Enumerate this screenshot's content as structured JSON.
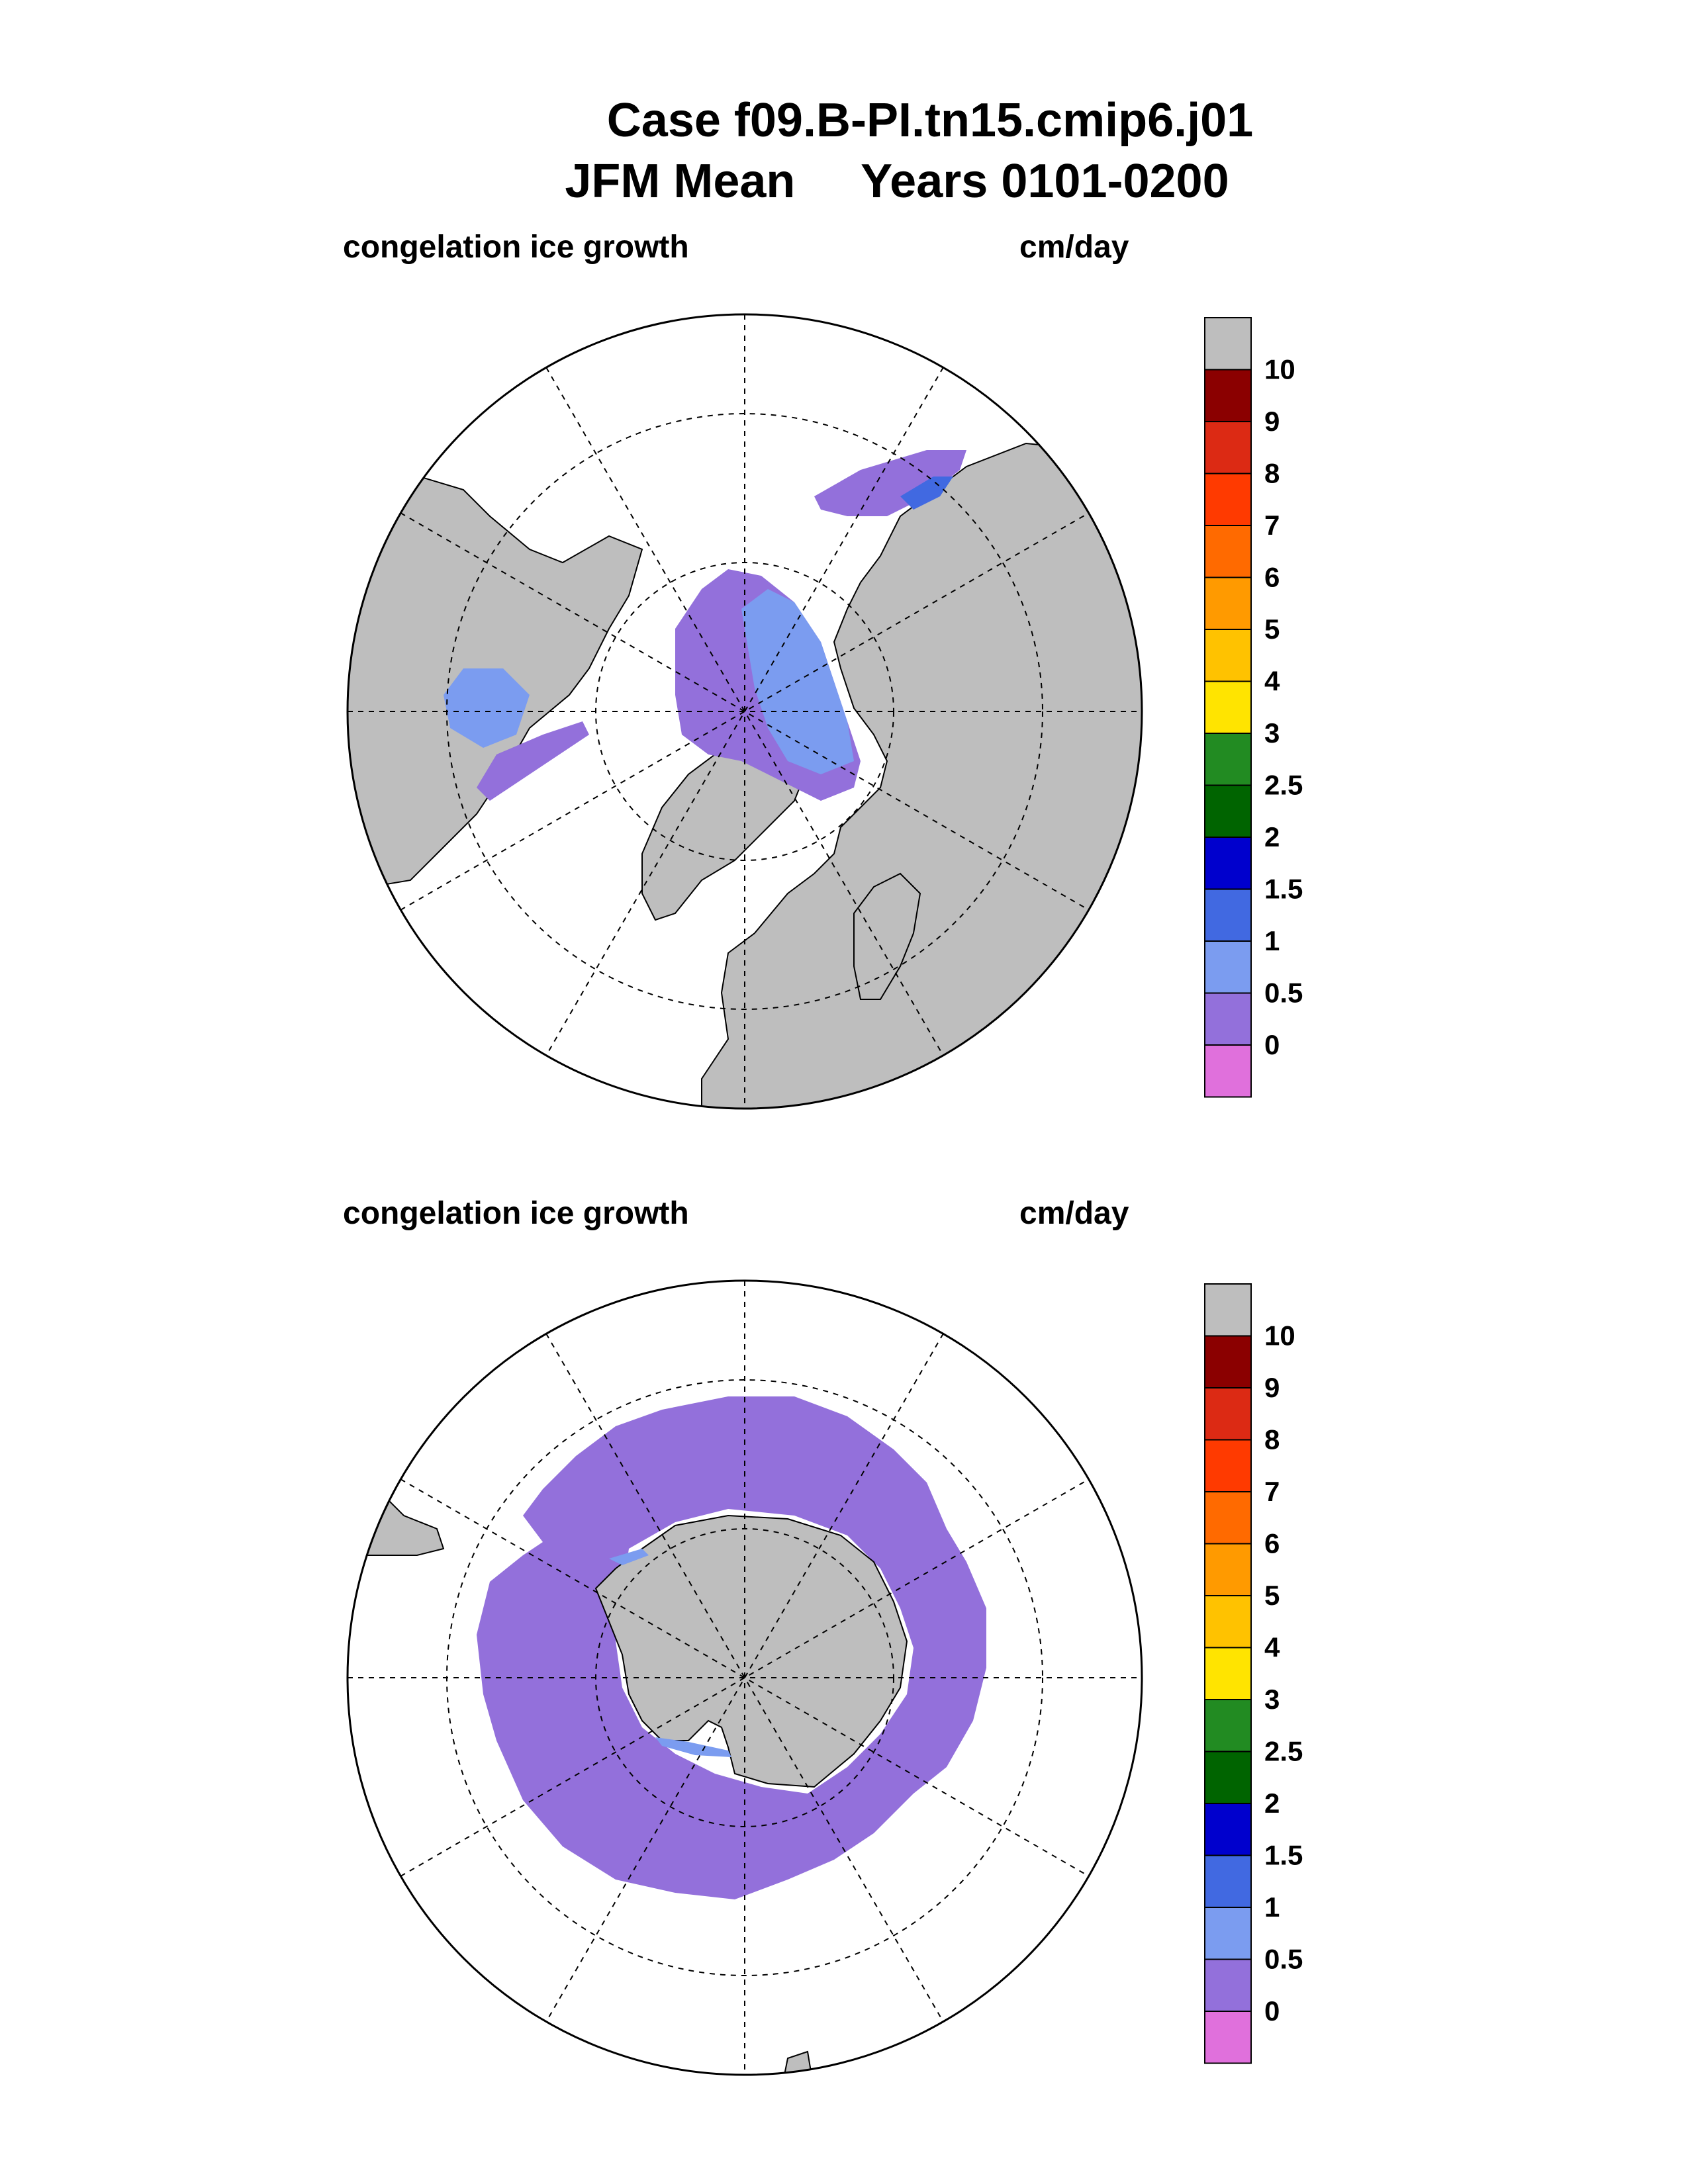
{
  "title": {
    "line1": "Case f09.B-PI.tn15.cmip6.j01",
    "line2": "JFM Mean     Years 0101-0200"
  },
  "panels": [
    {
      "hemisphere": "north",
      "variable_label": "congelation ice growth",
      "units_label": "cm/day"
    },
    {
      "hemisphere": "south",
      "variable_label": "congelation ice growth",
      "units_label": "cm/day"
    }
  ],
  "colorbar": {
    "labels": [
      "10",
      "9",
      "8",
      "7",
      "6",
      "5",
      "4",
      "3",
      "2.5",
      "2",
      "1.5",
      "1",
      "0.5",
      "0"
    ],
    "colors_top_to_bottom": [
      "#bebebe",
      "#8b0000",
      "#dc2a14",
      "#ff3a00",
      "#ff6a00",
      "#ff9a00",
      "#ffc200",
      "#ffe400",
      "#228b22",
      "#006400",
      "#0000cd",
      "#4169e1",
      "#7b9cf0",
      "#9370db",
      "#e070dc"
    ]
  },
  "colors": {
    "land": "#bebebe",
    "ocean_open": "#ffffff",
    "ice_0_0p5": "#9370db",
    "ice_0p5_1": "#7b9cf0",
    "ice_1_1p5": "#4169e1",
    "ice_1p5_2": "#0000cd"
  },
  "chart_data": [
    {
      "type": "heatmap",
      "projection": "polar stereographic, north pole",
      "title": "congelation ice growth",
      "units": "cm/day",
      "levels": [
        0,
        0.5,
        1,
        1.5,
        2,
        2.5,
        3,
        4,
        5,
        6,
        7,
        8,
        9,
        10
      ],
      "regions": [
        {
          "region": "central Arctic (Canadian side)",
          "range_cm_per_day": "0-0.5"
        },
        {
          "region": "central Arctic (Siberian side)",
          "range_cm_per_day": "0.5-1"
        },
        {
          "region": "Hudson Bay",
          "range_cm_per_day": "0.5-1.5"
        },
        {
          "region": "Bering/Okhotsk coasts",
          "range_cm_per_day": "1-2"
        },
        {
          "region": "Labrador Sea margin",
          "range_cm_per_day": "0-0.5"
        }
      ]
    },
    {
      "type": "heatmap",
      "projection": "polar stereographic, south pole",
      "title": "congelation ice growth",
      "units": "cm/day",
      "levels": [
        0,
        0.5,
        1,
        1.5,
        2,
        2.5,
        3,
        4,
        5,
        6,
        7,
        8,
        9,
        10
      ],
      "regions": [
        {
          "region": "circumpolar ice ring",
          "range_cm_per_day": "0-0.5"
        },
        {
          "region": "Weddell/Ross shelf edges",
          "range_cm_per_day": "0.5-1"
        }
      ]
    }
  ]
}
